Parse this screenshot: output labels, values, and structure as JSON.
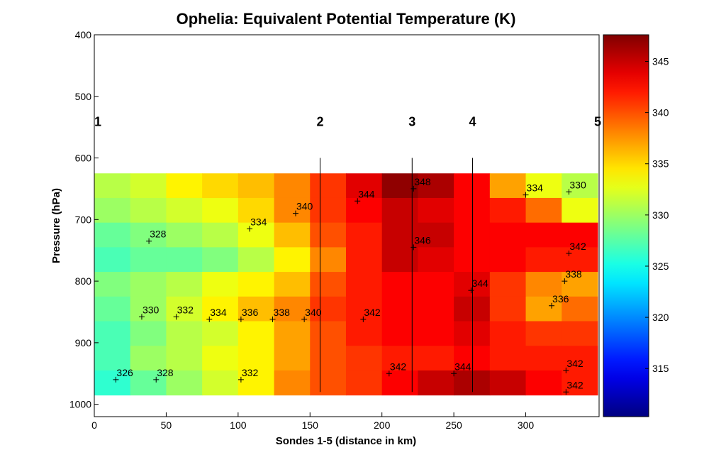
{
  "chart_data": {
    "type": "contour",
    "title": "Ophelia: Equivalent Potential Temperature (K)",
    "xlabel": "Sondes 1-5 (distance in km)",
    "ylabel": "Pressure (hPa)",
    "xlim": [
      0,
      351
    ],
    "ylim": [
      400,
      1020
    ],
    "y_reversed": true,
    "xticks": [
      0,
      50,
      100,
      150,
      200,
      250,
      300
    ],
    "yticks": [
      400,
      500,
      600,
      700,
      800,
      900,
      1000
    ],
    "clim": [
      310.3,
      347.6
    ],
    "cticks": [
      315,
      320,
      325,
      330,
      335,
      340,
      345
    ],
    "colormap": "jet",
    "x": [
      12.5,
      37.5,
      62.5,
      87.5,
      112.5,
      137.5,
      162.5,
      187.5,
      212.5,
      237.5,
      262.5,
      287.5,
      312.5,
      337.5
    ],
    "p": [
      645,
      685,
      725,
      765,
      805,
      845,
      885,
      925,
      965
    ],
    "z": [
      [
        331,
        332,
        334,
        335,
        336,
        338,
        341,
        344,
        347,
        346,
        343,
        337,
        333,
        331
      ],
      [
        330,
        331,
        332,
        333,
        335,
        338,
        341,
        343,
        345,
        344,
        343,
        342,
        339,
        333
      ],
      [
        328,
        329,
        330,
        331,
        333,
        336,
        340,
        342,
        345,
        345,
        343,
        343,
        343,
        343
      ],
      [
        327,
        328,
        328,
        329,
        331,
        334,
        338,
        342,
        345,
        344,
        343,
        343,
        342,
        342
      ],
      [
        329,
        330,
        331,
        333,
        334,
        336,
        340,
        342,
        343,
        343,
        344,
        341,
        338,
        337
      ],
      [
        328,
        330,
        332,
        334,
        336,
        338,
        341,
        342,
        343,
        343,
        345,
        341,
        337,
        339
      ],
      [
        327,
        329,
        331,
        332,
        334,
        337,
        340,
        342,
        343,
        343,
        344,
        342,
        341,
        341
      ],
      [
        327,
        330,
        331,
        333,
        334,
        337,
        340,
        341,
        342,
        342,
        343,
        342,
        342,
        342
      ],
      [
        326,
        328,
        330,
        332,
        334,
        338,
        340,
        341,
        343,
        345,
        346,
        345,
        343,
        342
      ]
    ],
    "sondes": {
      "labels": [
        "1",
        "2",
        "3",
        "4",
        "5"
      ],
      "x": [
        0,
        157,
        221,
        263,
        350
      ],
      "p": [
        548,
        548,
        548,
        548,
        548
      ]
    },
    "contour_labels": {
      "x": [
        222,
        183,
        140,
        108,
        38,
        222,
        330,
        327,
        318,
        262,
        33,
        57,
        80,
        102,
        124,
        146,
        187,
        300,
        330,
        15,
        43,
        102,
        205,
        250,
        328,
        328
      ],
      "p": [
        650,
        670,
        690,
        715,
        735,
        745,
        755,
        800,
        840,
        815,
        858,
        858,
        862,
        862,
        862,
        862,
        862,
        660,
        655,
        960,
        960,
        960,
        950,
        950,
        945,
        980
      ],
      "values": [
        348,
        344,
        340,
        334,
        328,
        346,
        342,
        338,
        336,
        344,
        330,
        332,
        334,
        336,
        338,
        340,
        342,
        334,
        330,
        326,
        328,
        332,
        342,
        344,
        342,
        342
      ]
    }
  }
}
